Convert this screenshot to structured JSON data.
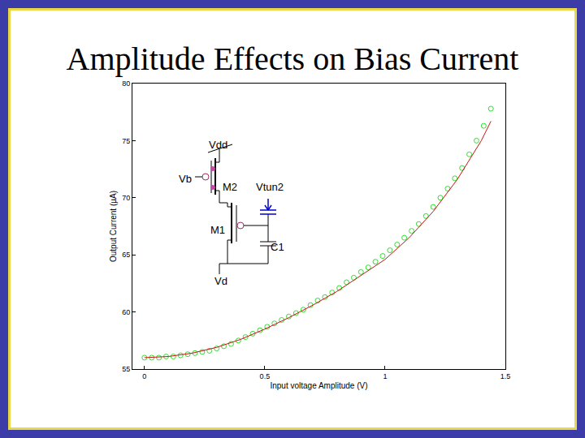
{
  "chart_data": {
    "type": "scatter",
    "title": "Amplitude Effects on Bias Current",
    "x_label": "Input voltage Amplitude (V)",
    "y_label": "Output Current (µA)",
    "xlim": [
      -0.05,
      1.5
    ],
    "ylim": [
      55,
      80
    ],
    "xticks": [
      0,
      0.5,
      1,
      1.5
    ],
    "yticks": [
      55,
      60,
      65,
      70,
      75,
      80
    ],
    "grid": false,
    "annotations": [
      "Vdd",
      "Vb",
      "M2",
      "Vtun2",
      "M1",
      "C1",
      "Vd"
    ],
    "series": [
      {
        "type": "scatter",
        "marker": "circle-open",
        "color": "#33dd33",
        "x": [
          0,
          0.03,
          0.06,
          0.09,
          0.12,
          0.15,
          0.18,
          0.21,
          0.24,
          0.27,
          0.3,
          0.33,
          0.36,
          0.39,
          0.42,
          0.45,
          0.48,
          0.51,
          0.54,
          0.57,
          0.6,
          0.63,
          0.66,
          0.69,
          0.72,
          0.75,
          0.78,
          0.81,
          0.84,
          0.87,
          0.9,
          0.93,
          0.96,
          0.99,
          1.02,
          1.05,
          1.08,
          1.11,
          1.14,
          1.17,
          1.2,
          1.23,
          1.26,
          1.29,
          1.32,
          1.35,
          1.38,
          1.41,
          1.44
        ],
        "values": [
          56.0,
          56.0,
          56.0,
          56.1,
          56.1,
          56.2,
          56.3,
          56.4,
          56.5,
          56.6,
          56.8,
          57.0,
          57.2,
          57.5,
          57.8,
          58.1,
          58.4,
          58.7,
          59.0,
          59.3,
          59.6,
          59.9,
          60.2,
          60.6,
          61.0,
          61.3,
          61.7,
          62.1,
          62.6,
          63.0,
          63.5,
          63.9,
          64.4,
          64.9,
          65.4,
          65.9,
          66.5,
          67.1,
          67.7,
          68.4,
          69.2,
          70.0,
          70.8,
          71.7,
          72.6,
          73.8,
          75.0,
          76.3,
          77.8
        ]
      },
      {
        "type": "line",
        "line_style": "solid",
        "color": "#cc1111",
        "x": [
          0,
          0.1,
          0.2,
          0.3,
          0.4,
          0.5,
          0.6,
          0.7,
          0.8,
          0.9,
          1.0,
          1.1,
          1.2,
          1.3,
          1.4,
          1.44
        ],
        "values": [
          56.0,
          56.1,
          56.4,
          56.9,
          57.6,
          58.5,
          59.5,
          60.6,
          61.8,
          63.2,
          64.6,
          66.5,
          68.8,
          71.6,
          75.0,
          76.7
        ]
      }
    ]
  }
}
